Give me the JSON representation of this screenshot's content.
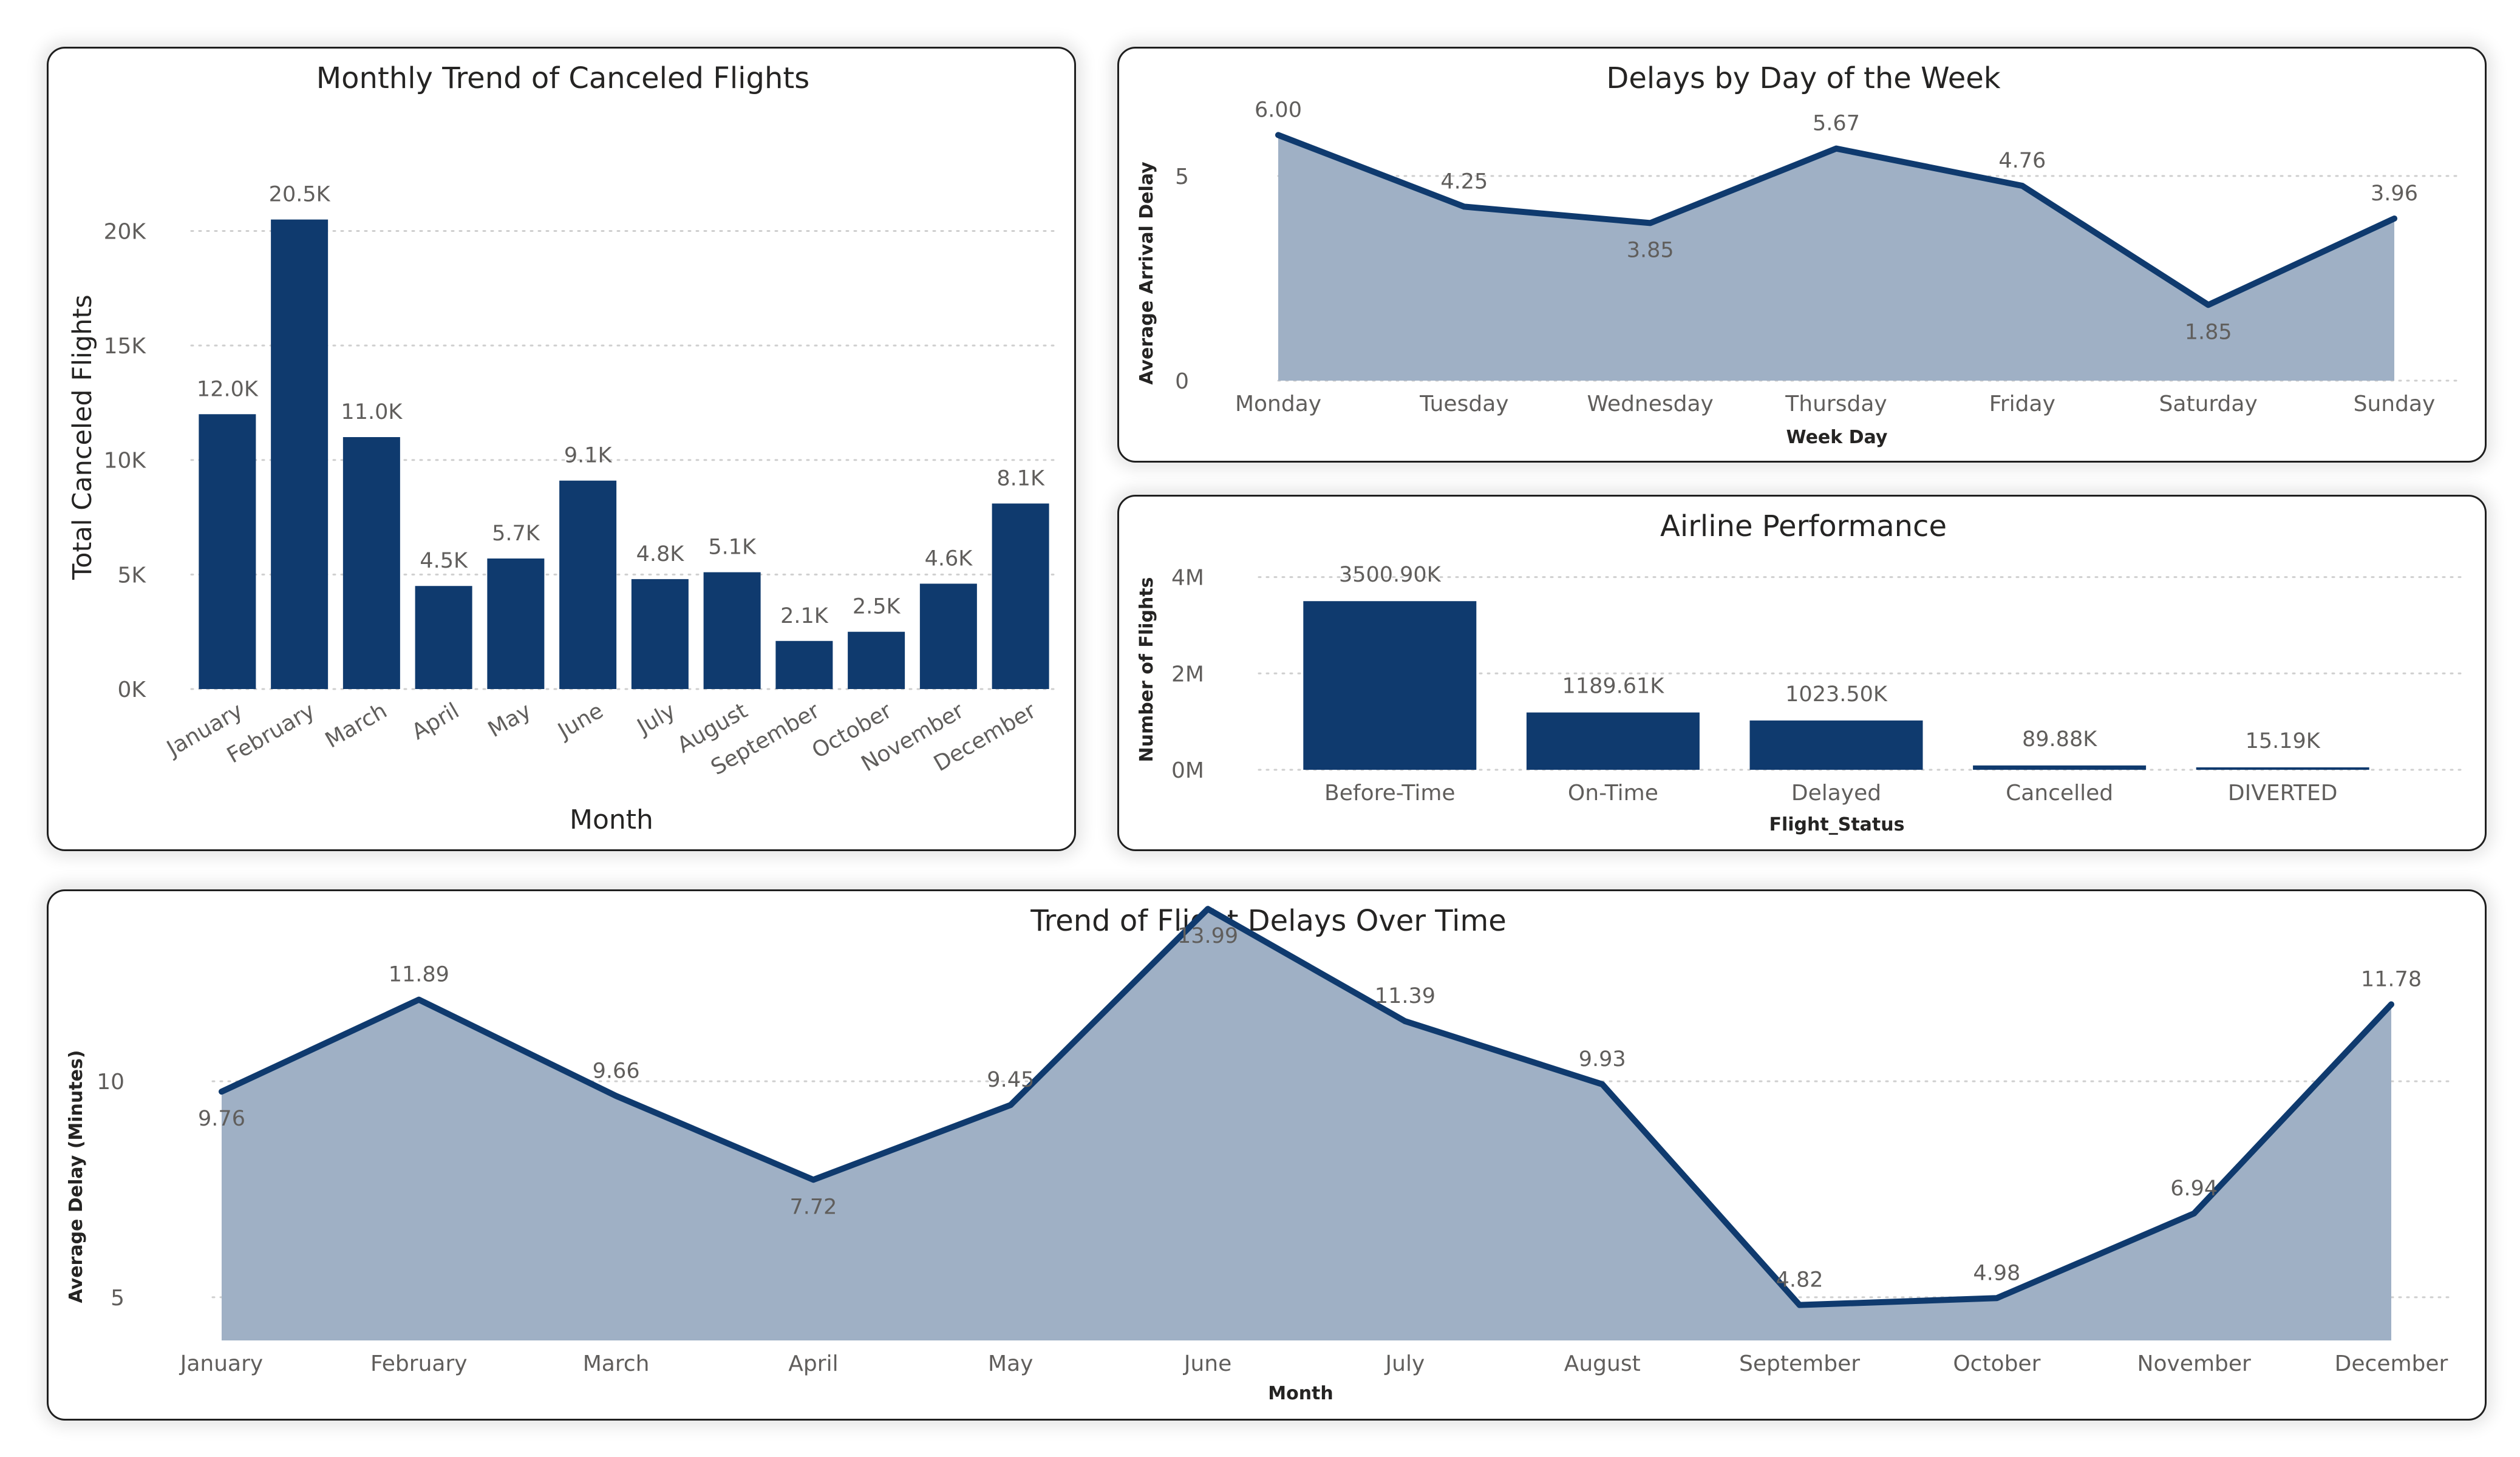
{
  "colors": {
    "bar": "#0f3a6e",
    "line": "#0f3a6e",
    "area": "#9fb0c5",
    "grid": "#cfcfcf",
    "text": "#252423",
    "label": "#605e5c"
  },
  "chart_data": [
    {
      "id": "canceled",
      "type": "bar",
      "title": "Monthly Trend of Canceled Flights",
      "xlabel": "Month",
      "ylabel": "Total Canceled Flights",
      "categories": [
        "January",
        "February",
        "March",
        "April",
        "May",
        "June",
        "July",
        "August",
        "September",
        "October",
        "November",
        "December"
      ],
      "values": [
        12.0,
        20.5,
        11.0,
        4.5,
        5.7,
        9.1,
        4.8,
        5.1,
        2.1,
        2.5,
        4.6,
        8.1
      ],
      "value_unit": "thousands",
      "data_labels": [
        "12.0K",
        "20.5K",
        "11.0K",
        "4.5K",
        "5.7K",
        "9.1K",
        "4.8K",
        "5.1K",
        "2.1K",
        "2.5K",
        "4.6K",
        "8.1K"
      ],
      "ylim": [
        0,
        22
      ],
      "yticks": [
        0,
        5,
        10,
        15,
        20
      ],
      "ytick_labels": [
        "0K",
        "5K",
        "10K",
        "15K",
        "20K"
      ],
      "grid": true
    },
    {
      "id": "weekday",
      "type": "area",
      "title": "Delays by Day of the Week",
      "xlabel": "Week Day",
      "ylabel": "Average Arrival Delay",
      "categories": [
        "Monday",
        "Tuesday",
        "Wednesday",
        "Thursday",
        "Friday",
        "Saturday",
        "Sunday"
      ],
      "values": [
        6.0,
        4.25,
        3.85,
        5.67,
        4.76,
        1.85,
        3.96
      ],
      "data_labels": [
        "6.00",
        "4.25",
        "3.85",
        "5.67",
        "4.76",
        "1.85",
        "3.96"
      ],
      "label_pos": [
        "above",
        "above",
        "below",
        "above",
        "above",
        "below",
        "above"
      ],
      "ylim": [
        0,
        7
      ],
      "yticks": [
        0,
        5
      ],
      "ytick_labels": [
        "0",
        "5"
      ],
      "grid": true
    },
    {
      "id": "airline",
      "type": "bar",
      "title": "Airline Performance",
      "xlabel": "Flight_Status",
      "ylabel": "Number of Flights",
      "categories": [
        "Before-Time",
        "On-Time",
        "Delayed",
        "Cancelled",
        "DIVERTED"
      ],
      "values": [
        3500.9,
        1189.61,
        1023.5,
        89.88,
        15.19
      ],
      "value_unit": "thousands",
      "data_labels": [
        "3500.90K",
        "1189.61K",
        "1023.50K",
        "89.88K",
        "15.19K"
      ],
      "ylim": [
        0,
        4600
      ],
      "yticks": [
        0,
        2000,
        4000
      ],
      "ytick_labels": [
        "0M",
        "2M",
        "4M"
      ],
      "grid": true
    },
    {
      "id": "delaytrend",
      "type": "area",
      "title": "Trend of Flight Delays Over Time",
      "xlabel": "Month",
      "ylabel": "Average Delay (Minutes)",
      "categories": [
        "January",
        "February",
        "March",
        "April",
        "May",
        "June",
        "July",
        "August",
        "September",
        "October",
        "November",
        "December"
      ],
      "values": [
        9.76,
        11.89,
        9.66,
        7.72,
        9.45,
        13.99,
        11.39,
        9.93,
        4.82,
        4.98,
        6.94,
        11.78
      ],
      "data_labels": [
        "9.76",
        "11.89",
        "9.66",
        "7.72",
        "9.45",
        "13.99",
        "11.39",
        "9.93",
        "4.82",
        "4.98",
        "6.94",
        "11.78"
      ],
      "label_pos": [
        "below",
        "above",
        "above",
        "below",
        "above",
        "below",
        "above",
        "above",
        "above",
        "above",
        "above",
        "above"
      ],
      "ylim": [
        4,
        14.4
      ],
      "yticks": [
        5,
        10
      ],
      "ytick_labels": [
        "5",
        "10"
      ],
      "grid": true
    }
  ]
}
